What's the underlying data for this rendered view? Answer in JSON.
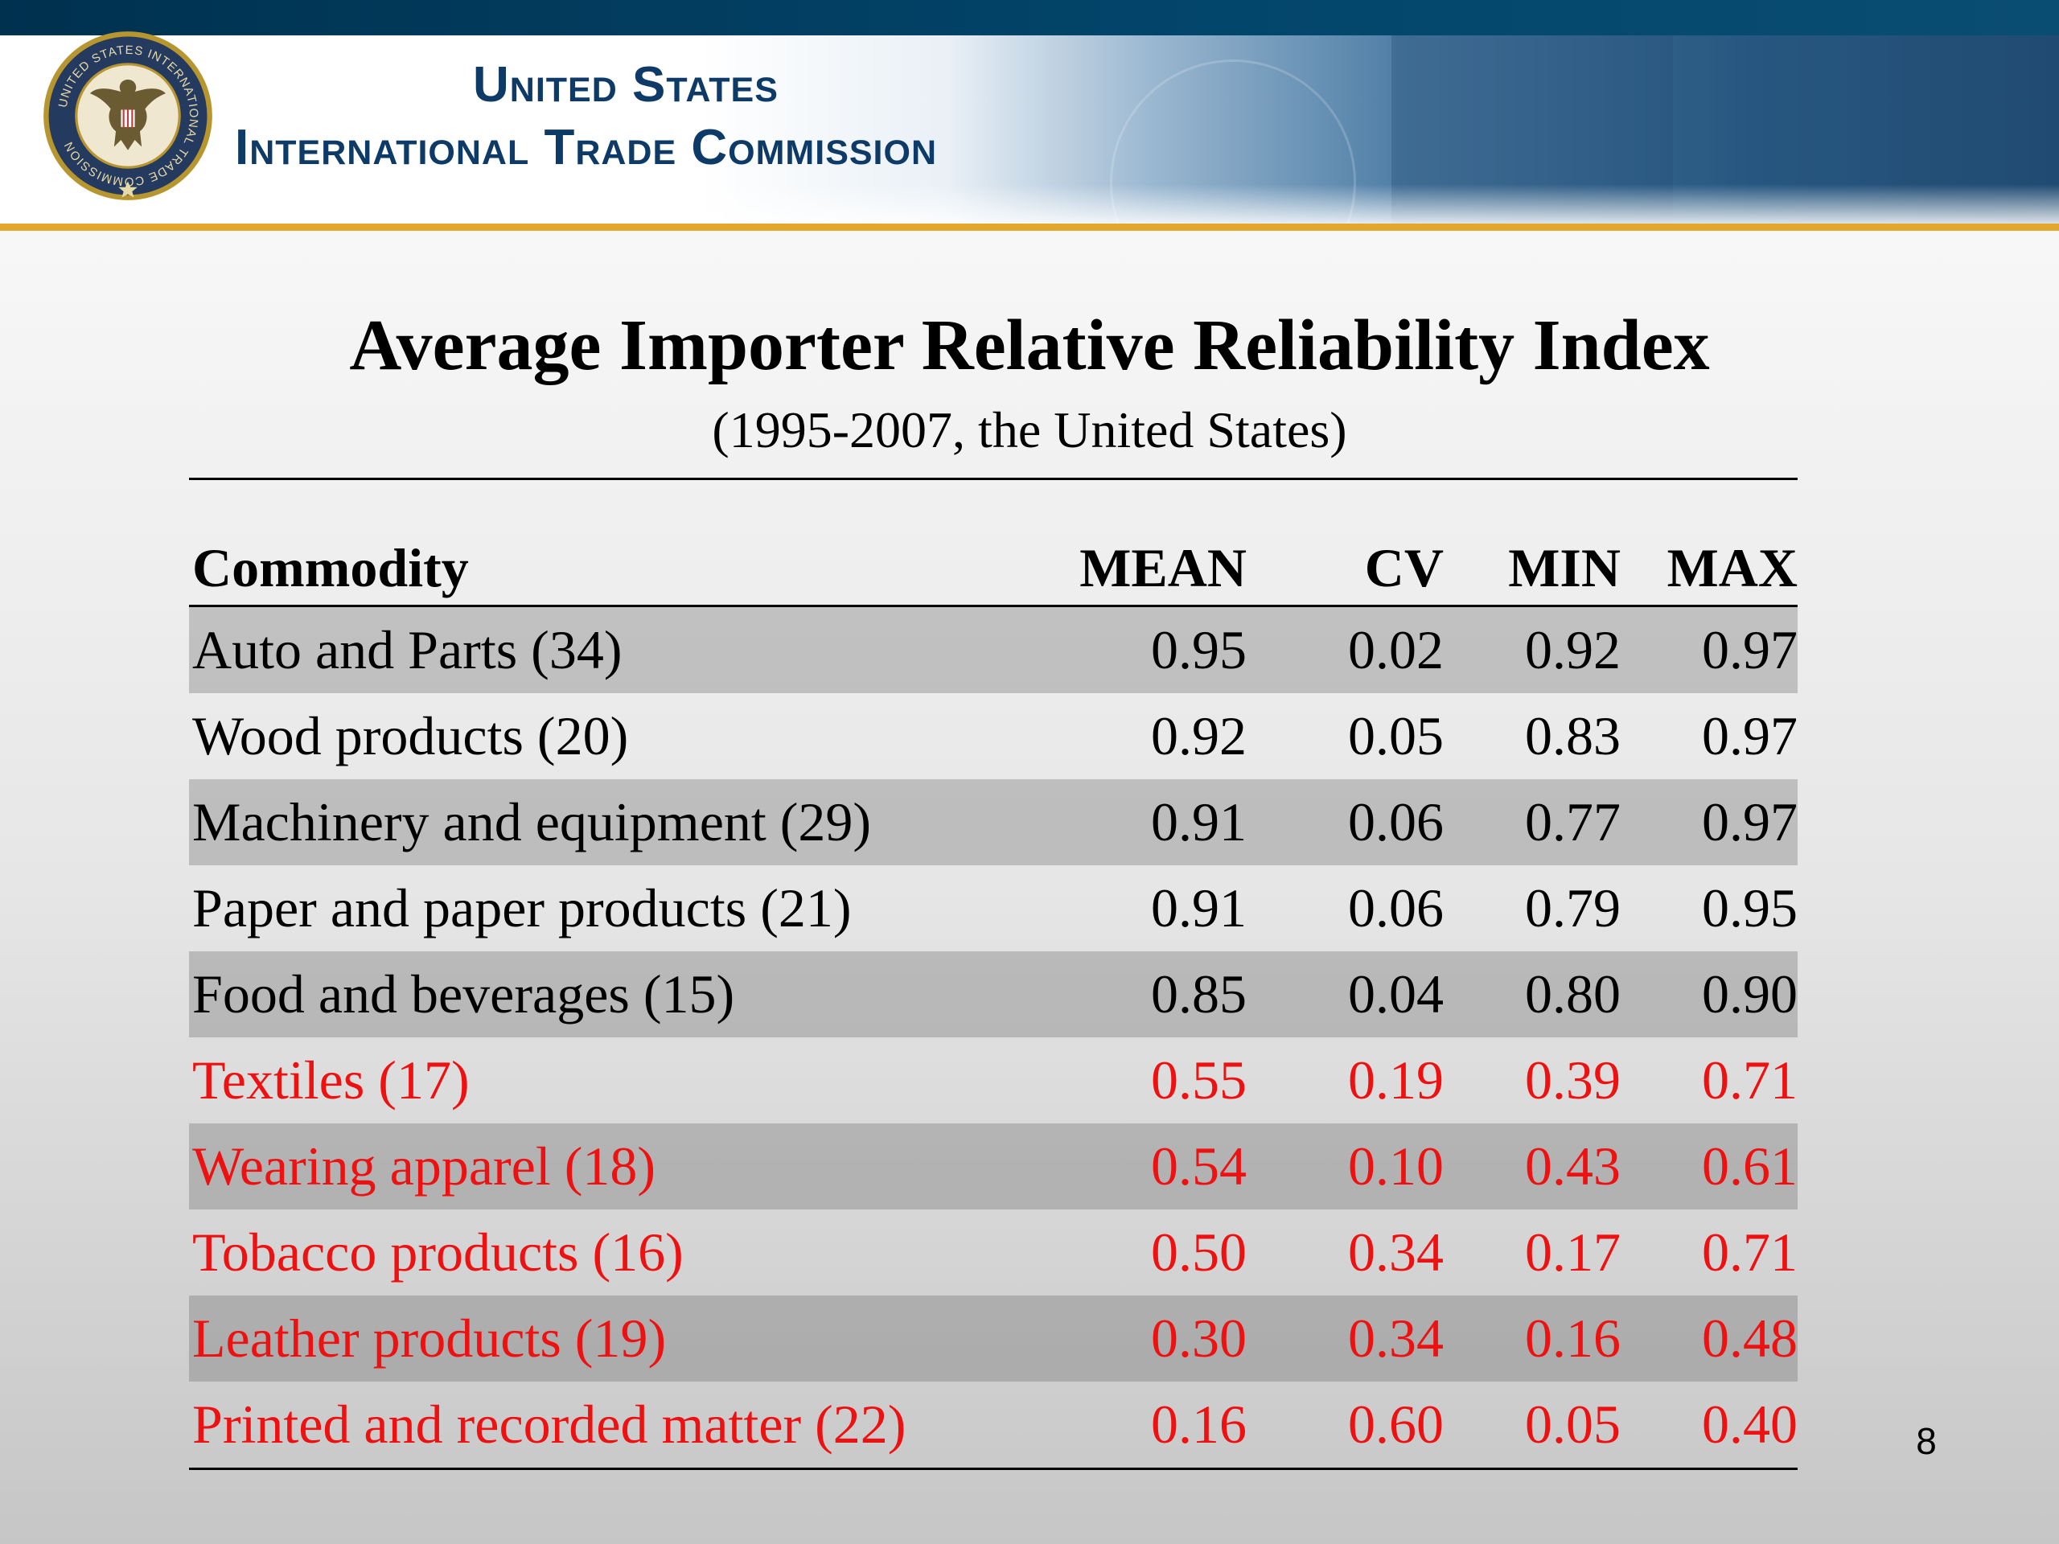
{
  "header": {
    "org_line1": "United States",
    "org_line2": "International Trade Commission",
    "seal_text": "UNITED STATES INTERNATIONAL TRADE COMMISSION"
  },
  "title": "Average Importer Relative Reliability Index",
  "subtitle": "(1995-2007, the United States)",
  "table": {
    "columns": [
      "Commodity",
      "MEAN",
      "CV",
      "MIN",
      "MAX"
    ],
    "rows": [
      {
        "commodity": "Auto and Parts (34)",
        "mean": "0.95",
        "cv": "0.02",
        "min": "0.92",
        "max": "0.97",
        "highlight": false
      },
      {
        "commodity": "Wood products (20)",
        "mean": "0.92",
        "cv": "0.05",
        "min": "0.83",
        "max": "0.97",
        "highlight": false
      },
      {
        "commodity": "Machinery and equipment (29)",
        "mean": "0.91",
        "cv": "0.06",
        "min": "0.77",
        "max": "0.97",
        "highlight": false
      },
      {
        "commodity": "Paper and paper products (21)",
        "mean": "0.91",
        "cv": "0.06",
        "min": "0.79",
        "max": "0.95",
        "highlight": false
      },
      {
        "commodity": "Food and beverages (15)",
        "mean": "0.85",
        "cv": "0.04",
        "min": "0.80",
        "max": "0.90",
        "highlight": false
      },
      {
        "commodity": "Textiles (17)",
        "mean": "0.55",
        "cv": "0.19",
        "min": "0.39",
        "max": "0.71",
        "highlight": true
      },
      {
        "commodity": "Wearing apparel (18)",
        "mean": "0.54",
        "cv": "0.10",
        "min": "0.43",
        "max": "0.61",
        "highlight": true
      },
      {
        "commodity": "Tobacco products (16)",
        "mean": "0.50",
        "cv": "0.34",
        "min": "0.17",
        "max": "0.71",
        "highlight": true
      },
      {
        "commodity": "Leather products (19)",
        "mean": "0.30",
        "cv": "0.34",
        "min": "0.16",
        "max": "0.48",
        "highlight": true
      },
      {
        "commodity": "Printed and recorded matter (22)",
        "mean": "0.16",
        "cv": "0.60",
        "min": "0.05",
        "max": "0.40",
        "highlight": true
      }
    ]
  },
  "colors": {
    "highlight_text": "#ee1111",
    "header_bar": "#00314f",
    "accent_line": "#e3a82b",
    "org_text": "#0d3a66"
  },
  "page_number": "8"
}
